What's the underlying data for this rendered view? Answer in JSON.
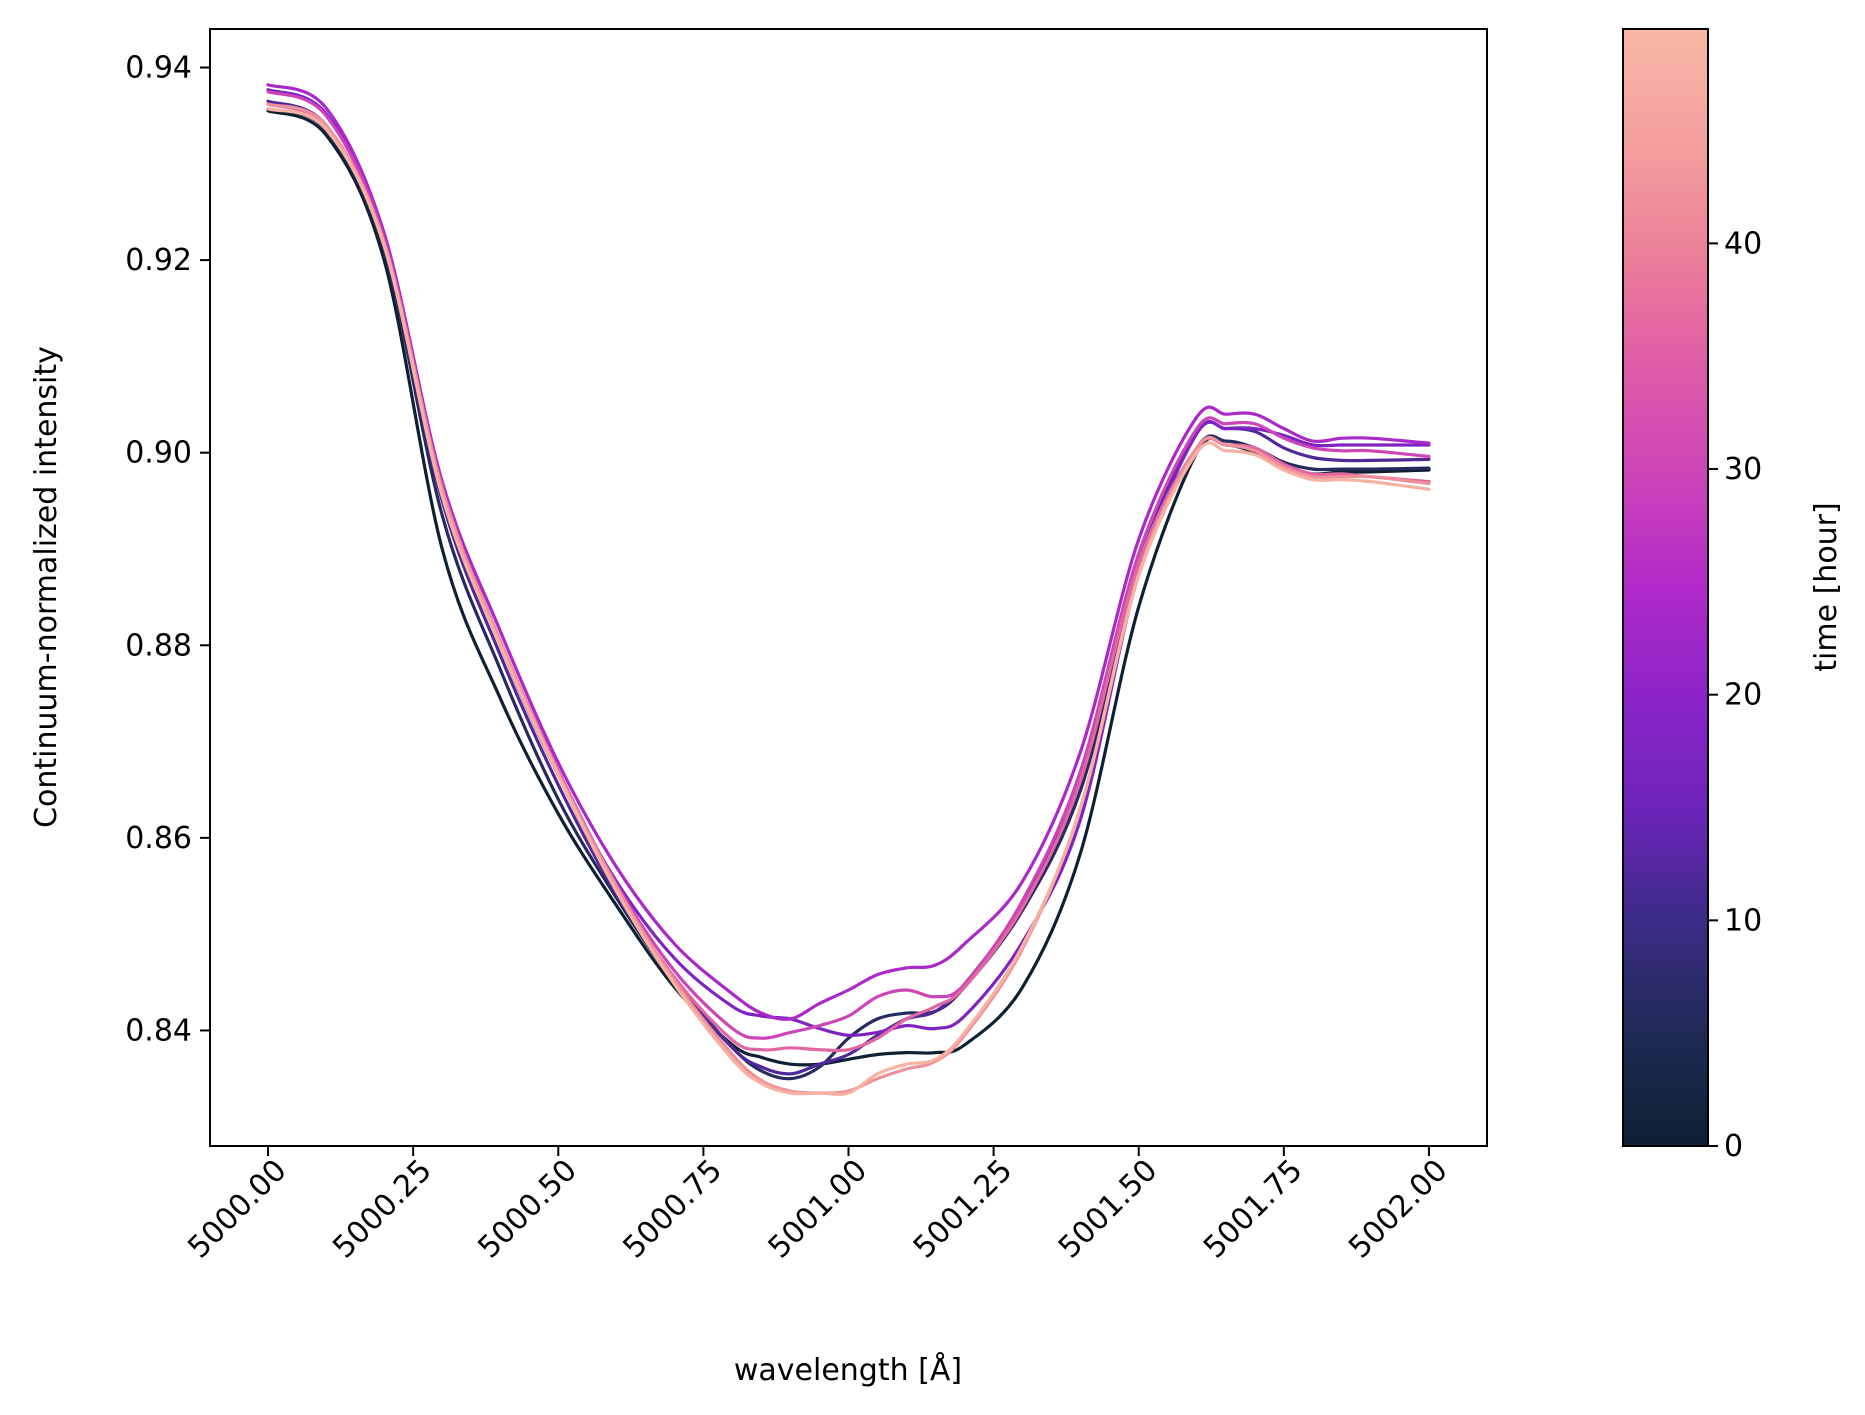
{
  "chart_data": {
    "type": "line",
    "title": "",
    "xlabel": "wavelength [Å]",
    "ylabel": "Continuum-normalized intensity",
    "xlim": [
      4999.9,
      5002.1
    ],
    "ylim": [
      0.828,
      0.944
    ],
    "x_ticks": [
      5000.0,
      5000.25,
      5000.5,
      5000.75,
      5001.0,
      5001.25,
      5001.5,
      5001.75,
      5002.0
    ],
    "x_tick_labels": [
      "5000.00",
      "5000.25",
      "5000.50",
      "5000.75",
      "5001.00",
      "5001.25",
      "5001.50",
      "5001.75",
      "5002.00"
    ],
    "y_ticks": [
      0.84,
      0.86,
      0.88,
      0.9,
      0.92,
      0.94
    ],
    "y_tick_labels": [
      "0.84",
      "0.86",
      "0.88",
      "0.90",
      "0.92",
      "0.94"
    ],
    "grid": false,
    "legend": "none",
    "colorbar": {
      "label": "time [hour]",
      "range": [
        0,
        49.5
      ],
      "ticks": [
        0,
        10,
        20,
        30,
        40
      ],
      "tick_labels": [
        "0",
        "10",
        "20",
        "30",
        "40"
      ],
      "colors": [
        "#0f2033",
        "#1f2a55",
        "#3a2c85",
        "#6b24b8",
        "#8b24c8",
        "#b02ac8",
        "#cc44b8",
        "#df5ca6",
        "#eb8098",
        "#f4a09e",
        "#f8b8a4"
      ]
    },
    "x": [
      5000.0,
      5000.1,
      5000.2,
      5000.3,
      5000.4,
      5000.5,
      5000.6,
      5000.7,
      5000.8,
      5000.85,
      5000.9,
      5000.95,
      5001.0,
      5001.05,
      5001.1,
      5001.15,
      5001.2,
      5001.3,
      5001.4,
      5001.5,
      5001.6,
      5001.65,
      5001.7,
      5001.75,
      5001.8,
      5001.85,
      5001.9,
      5002.0
    ],
    "series": [
      {
        "name": "t=0",
        "time": 0,
        "values": [
          0.9355,
          0.933,
          0.92,
          0.89,
          0.8745,
          0.8625,
          0.853,
          0.8445,
          0.8385,
          0.8372,
          0.8365,
          0.8365,
          0.837,
          0.8375,
          0.8377,
          0.8377,
          0.8385,
          0.8445,
          0.8585,
          0.884,
          0.9,
          0.9008,
          0.9,
          0.8985,
          0.8978,
          0.898,
          0.898,
          0.8982
        ]
      },
      {
        "name": "t=6",
        "time": 6,
        "values": [
          0.9357,
          0.9335,
          0.921,
          0.8935,
          0.8775,
          0.864,
          0.8538,
          0.845,
          0.8382,
          0.8358,
          0.835,
          0.8362,
          0.8392,
          0.8412,
          0.8418,
          0.842,
          0.8445,
          0.8525,
          0.865,
          0.8875,
          0.9005,
          0.9012,
          0.9005,
          0.899,
          0.8983,
          0.8983,
          0.8983,
          0.8984
        ]
      },
      {
        "name": "t=12",
        "time": 12,
        "values": [
          0.9365,
          0.934,
          0.9215,
          0.895,
          0.879,
          0.8655,
          0.8542,
          0.8455,
          0.8382,
          0.8362,
          0.8355,
          0.8365,
          0.8375,
          0.8395,
          0.8412,
          0.842,
          0.8448,
          0.8532,
          0.866,
          0.8885,
          0.902,
          0.9025,
          0.9022,
          0.9005,
          0.8995,
          0.8992,
          0.8992,
          0.8993
        ]
      },
      {
        "name": "t=18",
        "time": 18,
        "values": [
          0.9377,
          0.9352,
          0.9225,
          0.896,
          0.88,
          0.8665,
          0.8555,
          0.8475,
          0.8425,
          0.8415,
          0.8412,
          0.8402,
          0.8395,
          0.8398,
          0.8405,
          0.8402,
          0.8415,
          0.8492,
          0.862,
          0.8875,
          0.902,
          0.9025,
          0.9025,
          0.9018,
          0.9008,
          0.9008,
          0.9008,
          0.9008
        ]
      },
      {
        "name": "t=24",
        "time": 24,
        "values": [
          0.9382,
          0.9358,
          0.9228,
          0.897,
          0.8815,
          0.8678,
          0.857,
          0.849,
          0.8438,
          0.8418,
          0.8412,
          0.8428,
          0.8442,
          0.8458,
          0.8465,
          0.8468,
          0.849,
          0.8555,
          0.869,
          0.891,
          0.9037,
          0.904,
          0.904,
          0.9025,
          0.9012,
          0.9015,
          0.9015,
          0.901
        ]
      },
      {
        "name": "t=30",
        "time": 30,
        "values": [
          0.9375,
          0.935,
          0.9222,
          0.8965,
          0.8805,
          0.867,
          0.8552,
          0.8462,
          0.8402,
          0.8392,
          0.8398,
          0.8405,
          0.8415,
          0.8435,
          0.8442,
          0.8435,
          0.8448,
          0.8535,
          0.867,
          0.8895,
          0.9025,
          0.903,
          0.903,
          0.9015,
          0.9005,
          0.9002,
          0.9002,
          0.8996
        ]
      },
      {
        "name": "t=36",
        "time": 36,
        "values": [
          0.9362,
          0.9338,
          0.9215,
          0.8958,
          0.88,
          0.8665,
          0.8545,
          0.8455,
          0.839,
          0.838,
          0.8382,
          0.838,
          0.838,
          0.8392,
          0.8412,
          0.8425,
          0.8445,
          0.8528,
          0.866,
          0.8885,
          0.9005,
          0.9008,
          0.9005,
          0.8988,
          0.8978,
          0.8978,
          0.8975,
          0.897
        ]
      },
      {
        "name": "t=42",
        "time": 42,
        "values": [
          0.9362,
          0.934,
          0.9218,
          0.8962,
          0.8805,
          0.8668,
          0.855,
          0.8452,
          0.8375,
          0.8348,
          0.8337,
          0.8335,
          0.8337,
          0.835,
          0.836,
          0.8368,
          0.8395,
          0.8485,
          0.8632,
          0.8875,
          0.9005,
          0.9008,
          0.9002,
          0.8985,
          0.8975,
          0.8975,
          0.8975,
          0.8968
        ]
      },
      {
        "name": "t=48",
        "time": 48,
        "values": [
          0.9357,
          0.9336,
          0.9215,
          0.8955,
          0.88,
          0.8665,
          0.8545,
          0.8448,
          0.837,
          0.8345,
          0.8335,
          0.8335,
          0.8335,
          0.8355,
          0.8365,
          0.837,
          0.8398,
          0.8488,
          0.8632,
          0.8872,
          0.9,
          0.9002,
          0.8998,
          0.8982,
          0.8972,
          0.8972,
          0.897,
          0.8962
        ]
      }
    ]
  }
}
